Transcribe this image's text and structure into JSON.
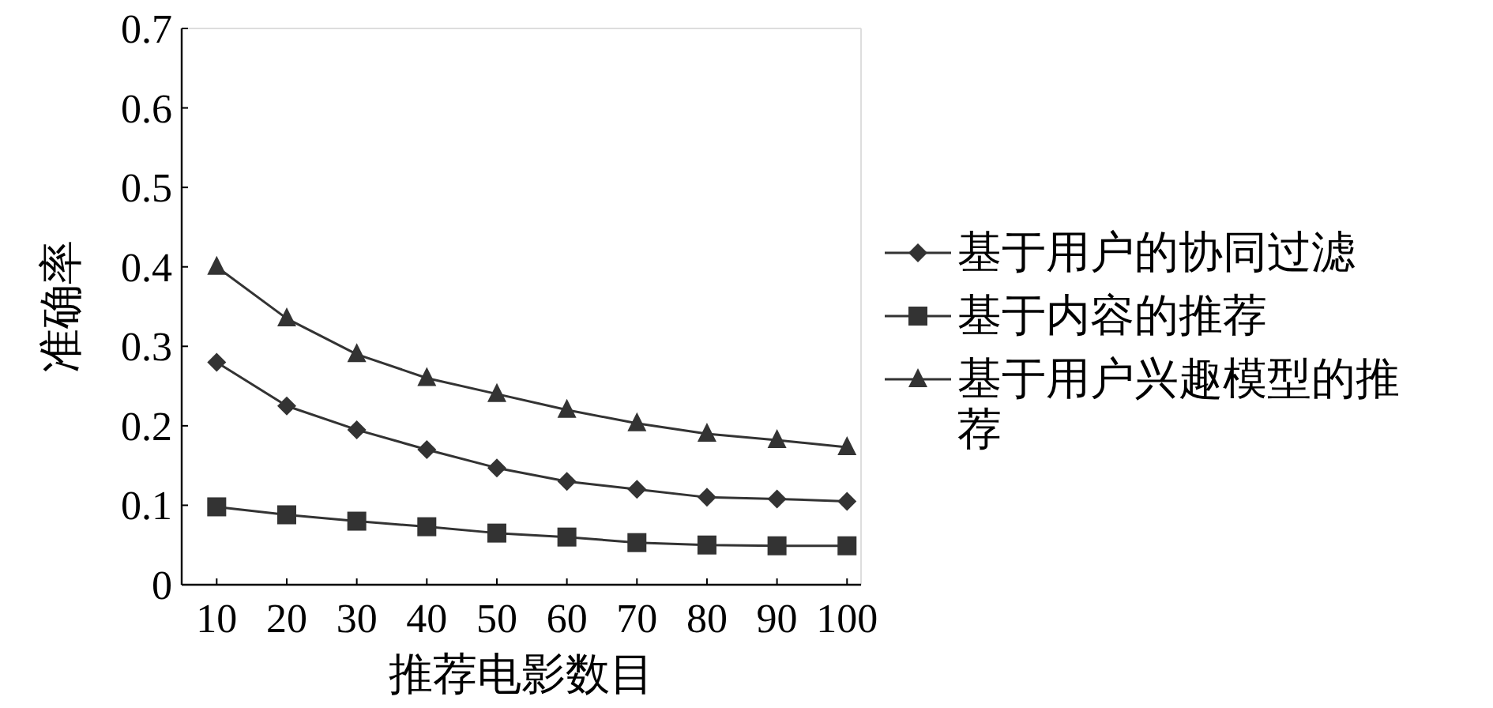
{
  "chart_data": {
    "type": "line",
    "xlabel": "推荐电影数目",
    "ylabel": "准确率",
    "x": [
      10,
      20,
      30,
      40,
      50,
      60,
      70,
      80,
      90,
      100
    ],
    "xlim": [
      5,
      102
    ],
    "xticks": [
      10,
      20,
      30,
      40,
      50,
      60,
      70,
      80,
      90,
      100
    ],
    "ylim": [
      0,
      0.7
    ],
    "yticks": [
      0,
      0.1,
      0.2,
      0.3,
      0.4,
      0.5,
      0.6,
      0.7
    ],
    "legend": "right",
    "grid": false,
    "series": [
      {
        "name": "基于用户的协同过滤",
        "color": "#333333",
        "marker": "diamond",
        "values": [
          0.28,
          0.225,
          0.195,
          0.17,
          0.147,
          0.13,
          0.12,
          0.11,
          0.108,
          0.105
        ]
      },
      {
        "name": "基于内容的推荐",
        "color": "#333333",
        "marker": "square",
        "values": [
          0.098,
          0.088,
          0.08,
          0.073,
          0.065,
          0.06,
          0.053,
          0.05,
          0.049,
          0.049
        ]
      },
      {
        "name": "基于用户兴趣模型的推荐",
        "color": "#333333",
        "marker": "triangle",
        "values": [
          0.4,
          0.335,
          0.29,
          0.26,
          0.24,
          0.22,
          0.203,
          0.19,
          0.182,
          0.173
        ]
      }
    ]
  }
}
